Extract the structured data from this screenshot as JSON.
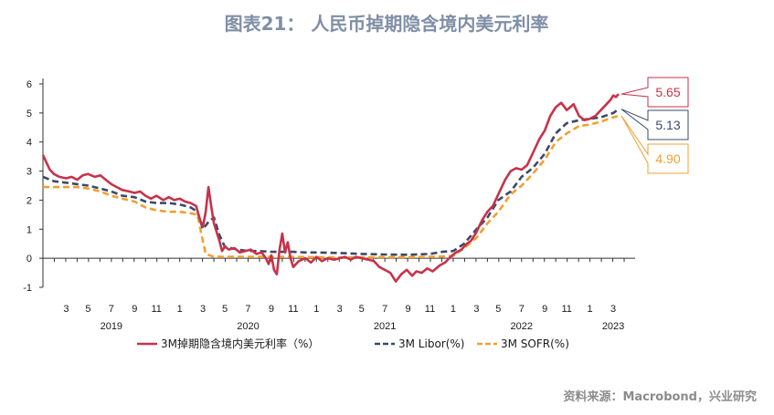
{
  "chart_data": {
    "type": "line",
    "title": "图表21： 人民币掉期隐含境内美元利率",
    "source": "资料来源：Macrobond，兴业研究",
    "ylim": [
      -1,
      6
    ],
    "yticks": [
      "-1",
      "0",
      "1",
      "2",
      "3",
      "4",
      "5",
      "6"
    ],
    "xlim": [
      2019.0,
      2023.33
    ],
    "month_ticks": [
      {
        "x": 2019.17,
        "label": "3"
      },
      {
        "x": 2019.33,
        "label": "5"
      },
      {
        "x": 2019.5,
        "label": "7"
      },
      {
        "x": 2019.67,
        "label": "9"
      },
      {
        "x": 2019.83,
        "label": "11"
      },
      {
        "x": 2020.0,
        "label": "1"
      },
      {
        "x": 2020.17,
        "label": "3"
      },
      {
        "x": 2020.33,
        "label": "5"
      },
      {
        "x": 2020.5,
        "label": "7"
      },
      {
        "x": 2020.67,
        "label": "9"
      },
      {
        "x": 2020.83,
        "label": "11"
      },
      {
        "x": 2021.0,
        "label": "1"
      },
      {
        "x": 2021.17,
        "label": "3"
      },
      {
        "x": 2021.33,
        "label": "5"
      },
      {
        "x": 2021.5,
        "label": "7"
      },
      {
        "x": 2021.67,
        "label": "9"
      },
      {
        "x": 2021.83,
        "label": "11"
      },
      {
        "x": 2022.0,
        "label": "1"
      },
      {
        "x": 2022.17,
        "label": "3"
      },
      {
        "x": 2022.33,
        "label": "5"
      },
      {
        "x": 2022.5,
        "label": "7"
      },
      {
        "x": 2022.67,
        "label": "9"
      },
      {
        "x": 2022.83,
        "label": "11"
      },
      {
        "x": 2023.0,
        "label": "1"
      },
      {
        "x": 2023.17,
        "label": "3"
      }
    ],
    "year_labels": [
      {
        "x": 2019.5,
        "label": "2019"
      },
      {
        "x": 2020.5,
        "label": "2020"
      },
      {
        "x": 2021.5,
        "label": "2021"
      },
      {
        "x": 2022.5,
        "label": "2022"
      },
      {
        "x": 2023.17,
        "label": "2023"
      }
    ],
    "series": [
      {
        "name": "3M掉期隐含境内美元利率（%）",
        "color": "#c8324a",
        "style": "solid",
        "last_label": "5.65",
        "points": [
          [
            2019.0,
            3.55
          ],
          [
            2019.02,
            3.35
          ],
          [
            2019.05,
            3.05
          ],
          [
            2019.08,
            2.9
          ],
          [
            2019.12,
            2.8
          ],
          [
            2019.17,
            2.75
          ],
          [
            2019.21,
            2.8
          ],
          [
            2019.25,
            2.7
          ],
          [
            2019.29,
            2.85
          ],
          [
            2019.33,
            2.9
          ],
          [
            2019.38,
            2.8
          ],
          [
            2019.42,
            2.85
          ],
          [
            2019.46,
            2.7
          ],
          [
            2019.5,
            2.55
          ],
          [
            2019.54,
            2.45
          ],
          [
            2019.58,
            2.35
          ],
          [
            2019.63,
            2.3
          ],
          [
            2019.67,
            2.25
          ],
          [
            2019.71,
            2.3
          ],
          [
            2019.75,
            2.15
          ],
          [
            2019.79,
            2.05
          ],
          [
            2019.83,
            2.15
          ],
          [
            2019.88,
            2.0
          ],
          [
            2019.92,
            2.1
          ],
          [
            2019.96,
            2.0
          ],
          [
            2020.0,
            2.05
          ],
          [
            2020.04,
            1.95
          ],
          [
            2020.08,
            1.9
          ],
          [
            2020.12,
            1.8
          ],
          [
            2020.15,
            1.3
          ],
          [
            2020.17,
            1.1
          ],
          [
            2020.19,
            1.6
          ],
          [
            2020.21,
            2.45
          ],
          [
            2020.23,
            1.8
          ],
          [
            2020.25,
            1.2
          ],
          [
            2020.27,
            0.9
          ],
          [
            2020.29,
            0.6
          ],
          [
            2020.31,
            0.25
          ],
          [
            2020.33,
            0.4
          ],
          [
            2020.36,
            0.3
          ],
          [
            2020.4,
            0.35
          ],
          [
            2020.44,
            0.2
          ],
          [
            2020.48,
            0.25
          ],
          [
            2020.52,
            0.3
          ],
          [
            2020.56,
            0.15
          ],
          [
            2020.6,
            0.2
          ],
          [
            2020.63,
            0.0
          ],
          [
            2020.65,
            -0.2
          ],
          [
            2020.67,
            0.1
          ],
          [
            2020.69,
            -0.4
          ],
          [
            2020.71,
            -0.55
          ],
          [
            2020.73,
            0.3
          ],
          [
            2020.75,
            0.85
          ],
          [
            2020.77,
            0.2
          ],
          [
            2020.79,
            0.55
          ],
          [
            2020.81,
            0.0
          ],
          [
            2020.83,
            -0.3
          ],
          [
            2020.87,
            -0.1
          ],
          [
            2020.92,
            0.0
          ],
          [
            2020.96,
            -0.15
          ],
          [
            2021.0,
            0.05
          ],
          [
            2021.04,
            -0.1
          ],
          [
            2021.08,
            0.0
          ],
          [
            2021.13,
            -0.05
          ],
          [
            2021.17,
            0.0
          ],
          [
            2021.21,
            0.05
          ],
          [
            2021.25,
            -0.05
          ],
          [
            2021.29,
            0.05
          ],
          [
            2021.33,
            0.0
          ],
          [
            2021.38,
            -0.05
          ],
          [
            2021.42,
            -0.1
          ],
          [
            2021.46,
            -0.3
          ],
          [
            2021.5,
            -0.4
          ],
          [
            2021.54,
            -0.5
          ],
          [
            2021.58,
            -0.8
          ],
          [
            2021.62,
            -0.55
          ],
          [
            2021.66,
            -0.4
          ],
          [
            2021.7,
            -0.6
          ],
          [
            2021.73,
            -0.45
          ],
          [
            2021.77,
            -0.5
          ],
          [
            2021.81,
            -0.35
          ],
          [
            2021.85,
            -0.45
          ],
          [
            2021.9,
            -0.25
          ],
          [
            2021.94,
            -0.15
          ],
          [
            2021.98,
            0.05
          ],
          [
            2022.02,
            0.2
          ],
          [
            2022.06,
            0.3
          ],
          [
            2022.1,
            0.5
          ],
          [
            2022.13,
            0.6
          ],
          [
            2022.17,
            0.9
          ],
          [
            2022.21,
            1.3
          ],
          [
            2022.25,
            1.6
          ],
          [
            2022.29,
            1.8
          ],
          [
            2022.33,
            2.2
          ],
          [
            2022.38,
            2.7
          ],
          [
            2022.42,
            3.0
          ],
          [
            2022.46,
            3.1
          ],
          [
            2022.5,
            3.05
          ],
          [
            2022.54,
            3.2
          ],
          [
            2022.58,
            3.6
          ],
          [
            2022.63,
            4.1
          ],
          [
            2022.67,
            4.4
          ],
          [
            2022.71,
            4.9
          ],
          [
            2022.75,
            5.2
          ],
          [
            2022.79,
            5.35
          ],
          [
            2022.83,
            5.1
          ],
          [
            2022.88,
            5.3
          ],
          [
            2022.92,
            4.9
          ],
          [
            2022.96,
            4.75
          ],
          [
            2023.0,
            4.8
          ],
          [
            2023.04,
            4.9
          ],
          [
            2023.08,
            5.1
          ],
          [
            2023.12,
            5.3
          ],
          [
            2023.15,
            5.45
          ],
          [
            2023.17,
            5.6
          ],
          [
            2023.19,
            5.55
          ],
          [
            2023.21,
            5.65
          ]
        ]
      },
      {
        "name": "3M Libor(%)",
        "color": "#3b4a6b",
        "style": "dashed",
        "last_label": "5.13",
        "points": [
          [
            2019.0,
            2.8
          ],
          [
            2019.08,
            2.65
          ],
          [
            2019.17,
            2.6
          ],
          [
            2019.25,
            2.55
          ],
          [
            2019.33,
            2.5
          ],
          [
            2019.42,
            2.4
          ],
          [
            2019.5,
            2.3
          ],
          [
            2019.58,
            2.15
          ],
          [
            2019.67,
            2.1
          ],
          [
            2019.75,
            1.95
          ],
          [
            2019.83,
            1.9
          ],
          [
            2019.92,
            1.9
          ],
          [
            2020.0,
            1.85
          ],
          [
            2020.08,
            1.75
          ],
          [
            2020.13,
            1.6
          ],
          [
            2020.17,
            1.0
          ],
          [
            2020.21,
            1.25
          ],
          [
            2020.25,
            1.4
          ],
          [
            2020.29,
            0.8
          ],
          [
            2020.33,
            0.4
          ],
          [
            2020.42,
            0.3
          ],
          [
            2020.5,
            0.25
          ],
          [
            2020.58,
            0.25
          ],
          [
            2020.67,
            0.22
          ],
          [
            2020.75,
            0.22
          ],
          [
            2020.83,
            0.22
          ],
          [
            2020.92,
            0.2
          ],
          [
            2021.0,
            0.2
          ],
          [
            2021.17,
            0.18
          ],
          [
            2021.33,
            0.15
          ],
          [
            2021.5,
            0.13
          ],
          [
            2021.67,
            0.12
          ],
          [
            2021.83,
            0.15
          ],
          [
            2021.92,
            0.22
          ],
          [
            2022.0,
            0.25
          ],
          [
            2022.08,
            0.5
          ],
          [
            2022.17,
            1.0
          ],
          [
            2022.25,
            1.4
          ],
          [
            2022.33,
            2.0
          ],
          [
            2022.42,
            2.3
          ],
          [
            2022.5,
            2.8
          ],
          [
            2022.58,
            3.1
          ],
          [
            2022.67,
            3.6
          ],
          [
            2022.75,
            4.3
          ],
          [
            2022.83,
            4.65
          ],
          [
            2022.92,
            4.75
          ],
          [
            2023.0,
            4.8
          ],
          [
            2023.08,
            4.85
          ],
          [
            2023.17,
            5.0
          ],
          [
            2023.21,
            5.13
          ]
        ]
      },
      {
        "name": "3M SOFR(%)",
        "color": "#f0a030",
        "style": "dashed",
        "last_label": "4.90",
        "points": [
          [
            2019.0,
            2.45
          ],
          [
            2019.08,
            2.45
          ],
          [
            2019.17,
            2.45
          ],
          [
            2019.25,
            2.45
          ],
          [
            2019.33,
            2.4
          ],
          [
            2019.42,
            2.3
          ],
          [
            2019.5,
            2.15
          ],
          [
            2019.58,
            2.05
          ],
          [
            2019.67,
            1.95
          ],
          [
            2019.75,
            1.75
          ],
          [
            2019.83,
            1.65
          ],
          [
            2019.92,
            1.6
          ],
          [
            2020.0,
            1.6
          ],
          [
            2020.08,
            1.55
          ],
          [
            2020.13,
            1.5
          ],
          [
            2020.16,
            0.8
          ],
          [
            2020.19,
            0.15
          ],
          [
            2020.25,
            0.05
          ],
          [
            2020.33,
            0.05
          ],
          [
            2020.5,
            0.05
          ],
          [
            2020.67,
            0.05
          ],
          [
            2020.83,
            0.05
          ],
          [
            2021.0,
            0.04
          ],
          [
            2021.17,
            0.03
          ],
          [
            2021.33,
            0.03
          ],
          [
            2021.5,
            0.04
          ],
          [
            2021.67,
            0.04
          ],
          [
            2021.83,
            0.05
          ],
          [
            2021.92,
            0.06
          ],
          [
            2022.0,
            0.08
          ],
          [
            2022.08,
            0.35
          ],
          [
            2022.17,
            0.7
          ],
          [
            2022.25,
            1.2
          ],
          [
            2022.33,
            1.6
          ],
          [
            2022.42,
            2.2
          ],
          [
            2022.5,
            2.5
          ],
          [
            2022.58,
            2.9
          ],
          [
            2022.67,
            3.4
          ],
          [
            2022.75,
            4.0
          ],
          [
            2022.83,
            4.3
          ],
          [
            2022.92,
            4.55
          ],
          [
            2023.0,
            4.6
          ],
          [
            2023.08,
            4.7
          ],
          [
            2023.17,
            4.85
          ],
          [
            2023.21,
            4.9
          ]
        ]
      }
    ],
    "legend_position": "bottom"
  }
}
